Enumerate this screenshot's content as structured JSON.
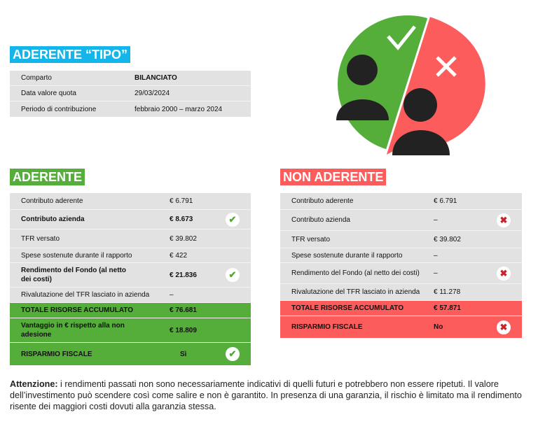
{
  "profile": {
    "title": "ADERENTE “TIPO”",
    "rows": [
      {
        "label": "Comparto",
        "value": "BILANCIATO"
      },
      {
        "label": "Data valore quota",
        "value": "29/03/2024"
      },
      {
        "label": "Periodo di contribuzione",
        "value": "febbraio 2000 – marzo 2024"
      }
    ]
  },
  "colors": {
    "blue": "#13b5ea",
    "green": "#55ad3a",
    "red": "#fd5c5c"
  },
  "aderente": {
    "title": "ADERENTE",
    "rows": [
      {
        "label": "Contributo aderente",
        "value": "€ 6.791"
      },
      {
        "label": "Contributo azienda",
        "value": "€ 8.673",
        "icon": "check-icon"
      },
      {
        "label": "TFR versato",
        "value": "€ 39.802"
      },
      {
        "label": "Spese sostenute durante il rapporto",
        "value": "€ 422"
      },
      {
        "label": "Rendimento del Fondo (al netto dei costi)",
        "value": "€ 21.836",
        "icon": "check-icon"
      },
      {
        "label": "Rivalutazione del TFR lasciato in azienda",
        "value": "–"
      },
      {
        "label": "TOTALE RISORSE ACCUMULATO",
        "value": "€ 76.681"
      },
      {
        "label": "Vantaggio in € rispetto alla non adesione",
        "value": "€ 18.809"
      },
      {
        "label": "RISPARMIO FISCALE",
        "value": "Sì",
        "icon": "check-icon"
      }
    ]
  },
  "non_aderente": {
    "title": "NON ADERENTE",
    "rows": [
      {
        "label": "Contributo aderente",
        "value": "€ 6.791"
      },
      {
        "label": "Contributo azienda",
        "value": "–",
        "icon": "x-icon"
      },
      {
        "label": "TFR versato",
        "value": "€ 39.802"
      },
      {
        "label": "Spese sostenute durante il rapporto",
        "value": "–"
      },
      {
        "label": "Rendimento del Fondo (al netto dei costi)",
        "value": "–",
        "icon": "x-icon"
      },
      {
        "label": "Rivalutazione del TFR lasciato in azienda",
        "value": "€ 11.278"
      },
      {
        "label": "TOTALE RISORSE ACCUMULATO",
        "value": "€ 57.871"
      },
      {
        "label": "RISPARMIO FISCALE",
        "value": "No",
        "icon": "x-icon"
      }
    ]
  },
  "note": {
    "bold": "Attenzione:",
    "text": " i rendimenti passati non sono necessariamente indicativi di quelli futuri e potrebbero non essere ripetuti. Il valore dell’investimento può scendere così come salire e non è garantito. In presenza di una garanzia, il rischio è limitato ma il rendimento risente dei maggiori costi dovuti alla garanzia stessa."
  }
}
